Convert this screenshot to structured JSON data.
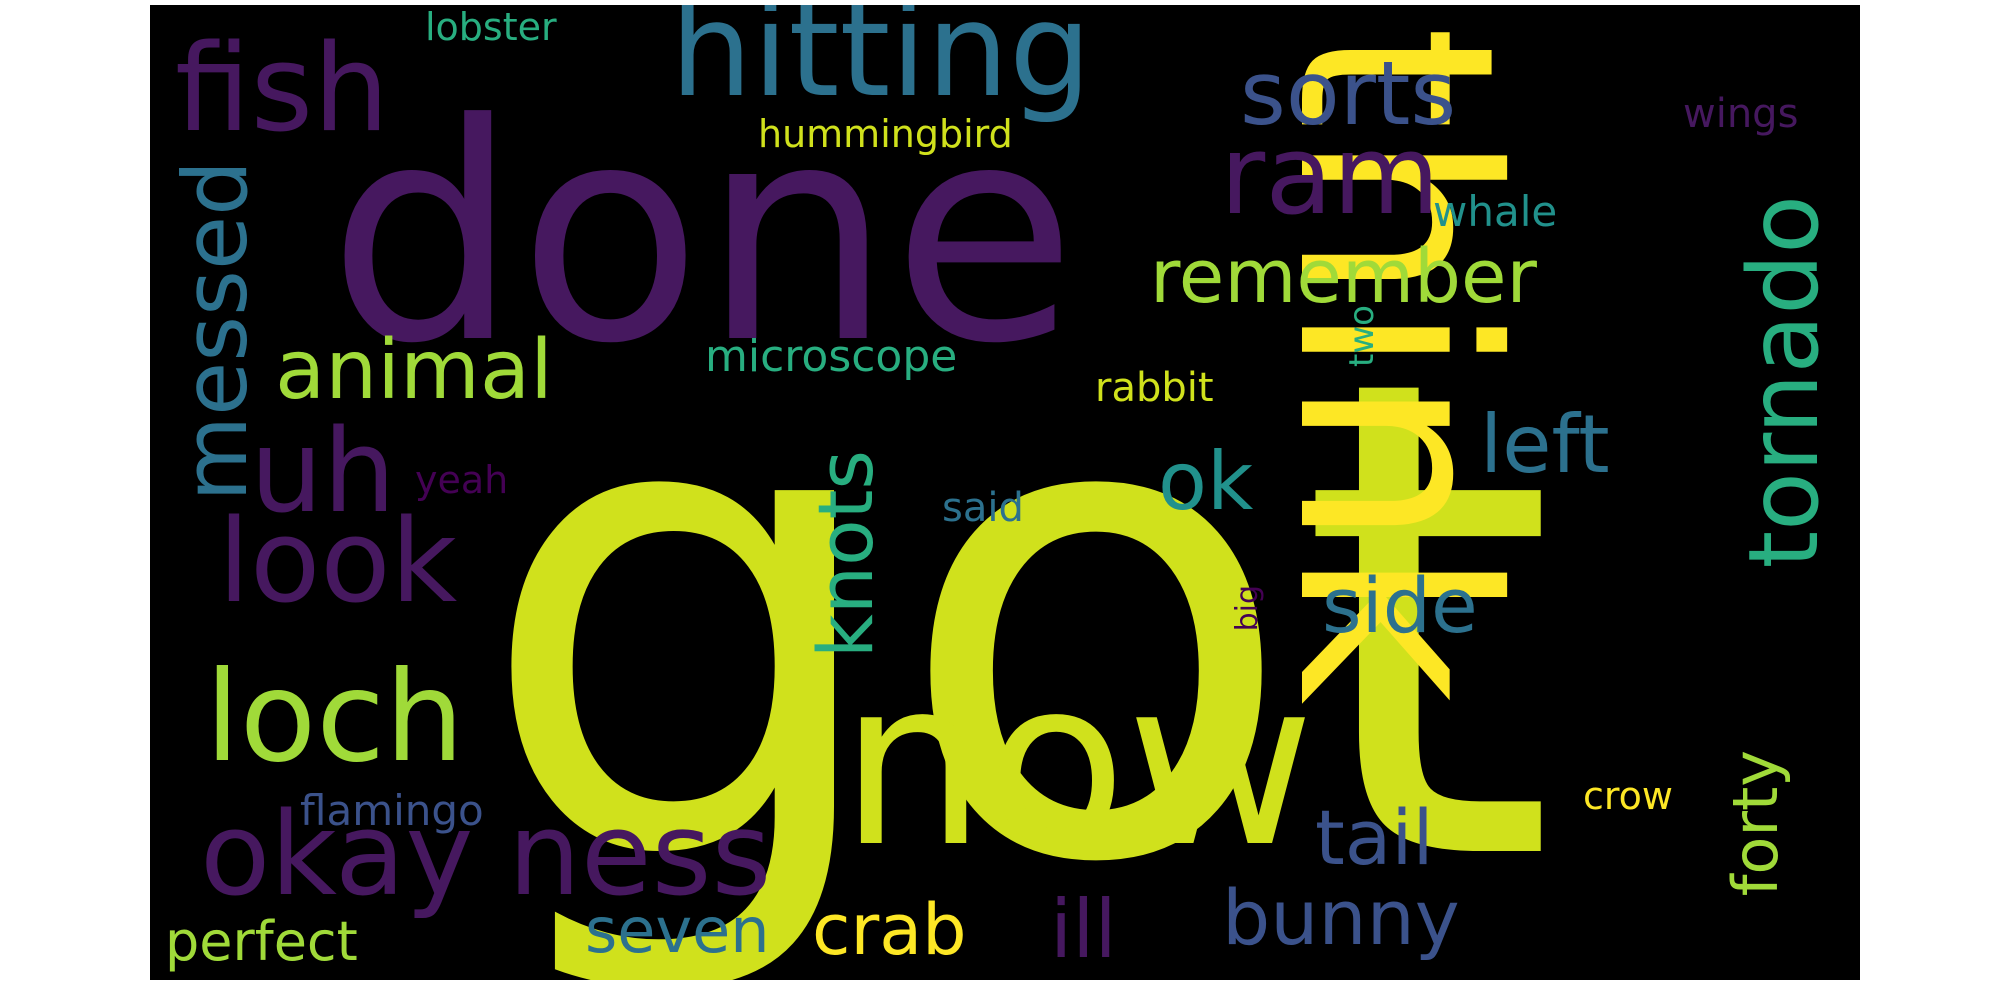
{
  "word_cloud": {
    "words": [
      {
        "text": "got",
        "color": "#d0e11c"
      },
      {
        "text": "done",
        "color": "#46185f"
      },
      {
        "text": "think",
        "color": "#fde725"
      },
      {
        "text": "now",
        "color": "#d0e11c"
      },
      {
        "text": "hitting",
        "color": "#2c718e"
      },
      {
        "text": "fish",
        "color": "#46185f"
      },
      {
        "text": "look",
        "color": "#46185f"
      },
      {
        "text": "okay",
        "color": "#46185f"
      },
      {
        "text": "ness",
        "color": "#46185f"
      },
      {
        "text": "loch",
        "color": "#a0da39"
      },
      {
        "text": "uh",
        "color": "#46185f"
      },
      {
        "text": "ram",
        "color": "#46185f"
      },
      {
        "text": "tornado",
        "color": "#28ae80"
      },
      {
        "text": "sorts",
        "color": "#3b528b"
      },
      {
        "text": "messed",
        "color": "#2c718e"
      },
      {
        "text": "remember",
        "color": "#a0da39"
      },
      {
        "text": "animal",
        "color": "#a0da39"
      },
      {
        "text": "ok",
        "color": "#21918c"
      },
      {
        "text": "left",
        "color": "#2c718e"
      },
      {
        "text": "knots",
        "color": "#28ae80"
      },
      {
        "text": "side",
        "color": "#2c718e"
      },
      {
        "text": "tail",
        "color": "#3b528b"
      },
      {
        "text": "bunny",
        "color": "#3b528b"
      },
      {
        "text": "crab",
        "color": "#fde725"
      },
      {
        "text": "ill",
        "color": "#46185f"
      },
      {
        "text": "seven",
        "color": "#2c718e"
      },
      {
        "text": "forty",
        "color": "#a0da39"
      },
      {
        "text": "perfect",
        "color": "#a0da39"
      },
      {
        "text": "microscope",
        "color": "#28ae80"
      },
      {
        "text": "hummingbird",
        "color": "#d0e11c"
      },
      {
        "text": "whale",
        "color": "#21918c"
      },
      {
        "text": "rabbit",
        "color": "#d0e11c"
      },
      {
        "text": "flamingo",
        "color": "#3b528b"
      },
      {
        "text": "wings",
        "color": "#46185f"
      },
      {
        "text": "lobster",
        "color": "#28ae80"
      },
      {
        "text": "said",
        "color": "#2c718e"
      },
      {
        "text": "yeah",
        "color": "#440154"
      },
      {
        "text": "crow",
        "color": "#fde725"
      },
      {
        "text": "two",
        "color": "#28ae80"
      },
      {
        "text": "big",
        "color": "#440154"
      }
    ]
  }
}
